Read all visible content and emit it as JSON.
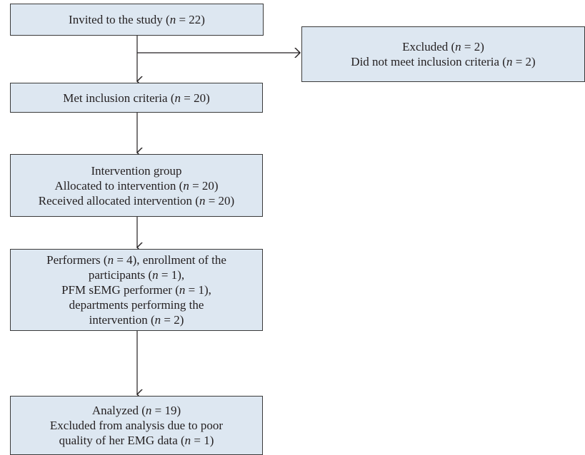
{
  "boxes": {
    "invited": {
      "lines": [
        {
          "pre": "Invited to the study (",
          "n": "n",
          "post": " = 22)"
        }
      ]
    },
    "excluded": {
      "lines": [
        {
          "pre": "Excluded (",
          "n": "n",
          "post": " = 2)"
        },
        {
          "pre": "Did not meet inclusion criteria (",
          "n": "n",
          "post": " = 2)"
        }
      ]
    },
    "met": {
      "lines": [
        {
          "pre": "Met inclusion criteria (",
          "n": "n",
          "post": " = 20)"
        }
      ]
    },
    "intervention": {
      "lines": [
        {
          "pre": "Intervention group"
        },
        {
          "pre": "Allocated to intervention (",
          "n": "n",
          "post": " = 20)"
        },
        {
          "pre": "Received allocated intervention (",
          "n": "n",
          "post": " = 20)"
        }
      ]
    },
    "performers": {
      "lines": [
        {
          "pre": "Performers (",
          "n": "n",
          "post": " = 4), enrollment of the"
        },
        {
          "pre": "participants (",
          "n": "n",
          "post": " = 1),"
        },
        {
          "pre": "PFM sEMG performer (",
          "n": "n",
          "post": " = 1),"
        },
        {
          "pre": "departments performing the"
        },
        {
          "pre": "intervention (",
          "n": "n",
          "post": " = 2)"
        }
      ]
    },
    "analyzed": {
      "lines": [
        {
          "pre": "Analyzed (",
          "n": "n",
          "post": " = 19)"
        },
        {
          "pre": "Excluded from analysis due to poor"
        },
        {
          "pre": "quality of her EMG data (",
          "n": "n",
          "post": " = 1)"
        }
      ]
    }
  }
}
